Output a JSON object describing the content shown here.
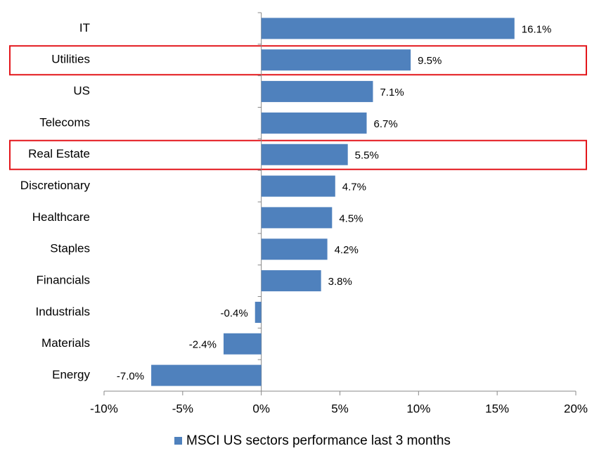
{
  "chart_data": {
    "type": "barh",
    "categories": [
      "IT",
      "Utilities",
      "US",
      "Telecoms",
      "Real Estate",
      "Discretionary",
      "Healthcare",
      "Staples",
      "Financials",
      "Industrials",
      "Materials",
      "Energy"
    ],
    "series": [
      {
        "name": "MSCI US sectors performance last 3 months",
        "color": "#4f81bd",
        "values": [
          16.1,
          9.5,
          7.1,
          6.7,
          5.5,
          4.7,
          4.5,
          4.2,
          3.8,
          -0.4,
          -2.4,
          -7.0
        ],
        "value_labels": [
          "16.1%",
          "9.5%",
          "7.1%",
          "6.7%",
          "5.5%",
          "4.7%",
          "4.5%",
          "4.2%",
          "3.8%",
          "-0.4%",
          "-2.4%",
          "-7.0%"
        ]
      }
    ],
    "xlim": [
      -10,
      20
    ],
    "xticks": [
      {
        "value": -10,
        "label": "-10%"
      },
      {
        "value": -5,
        "label": "-5%"
      },
      {
        "value": 0,
        "label": "0%"
      },
      {
        "value": 5,
        "label": "5%"
      },
      {
        "value": 10,
        "label": "10%"
      },
      {
        "value": 15,
        "label": "15%"
      },
      {
        "value": 20,
        "label": "20%"
      }
    ],
    "highlight": [
      "Utilities",
      "Real Estate"
    ],
    "highlight_color": "#e3161b",
    "legend": "bottom"
  }
}
